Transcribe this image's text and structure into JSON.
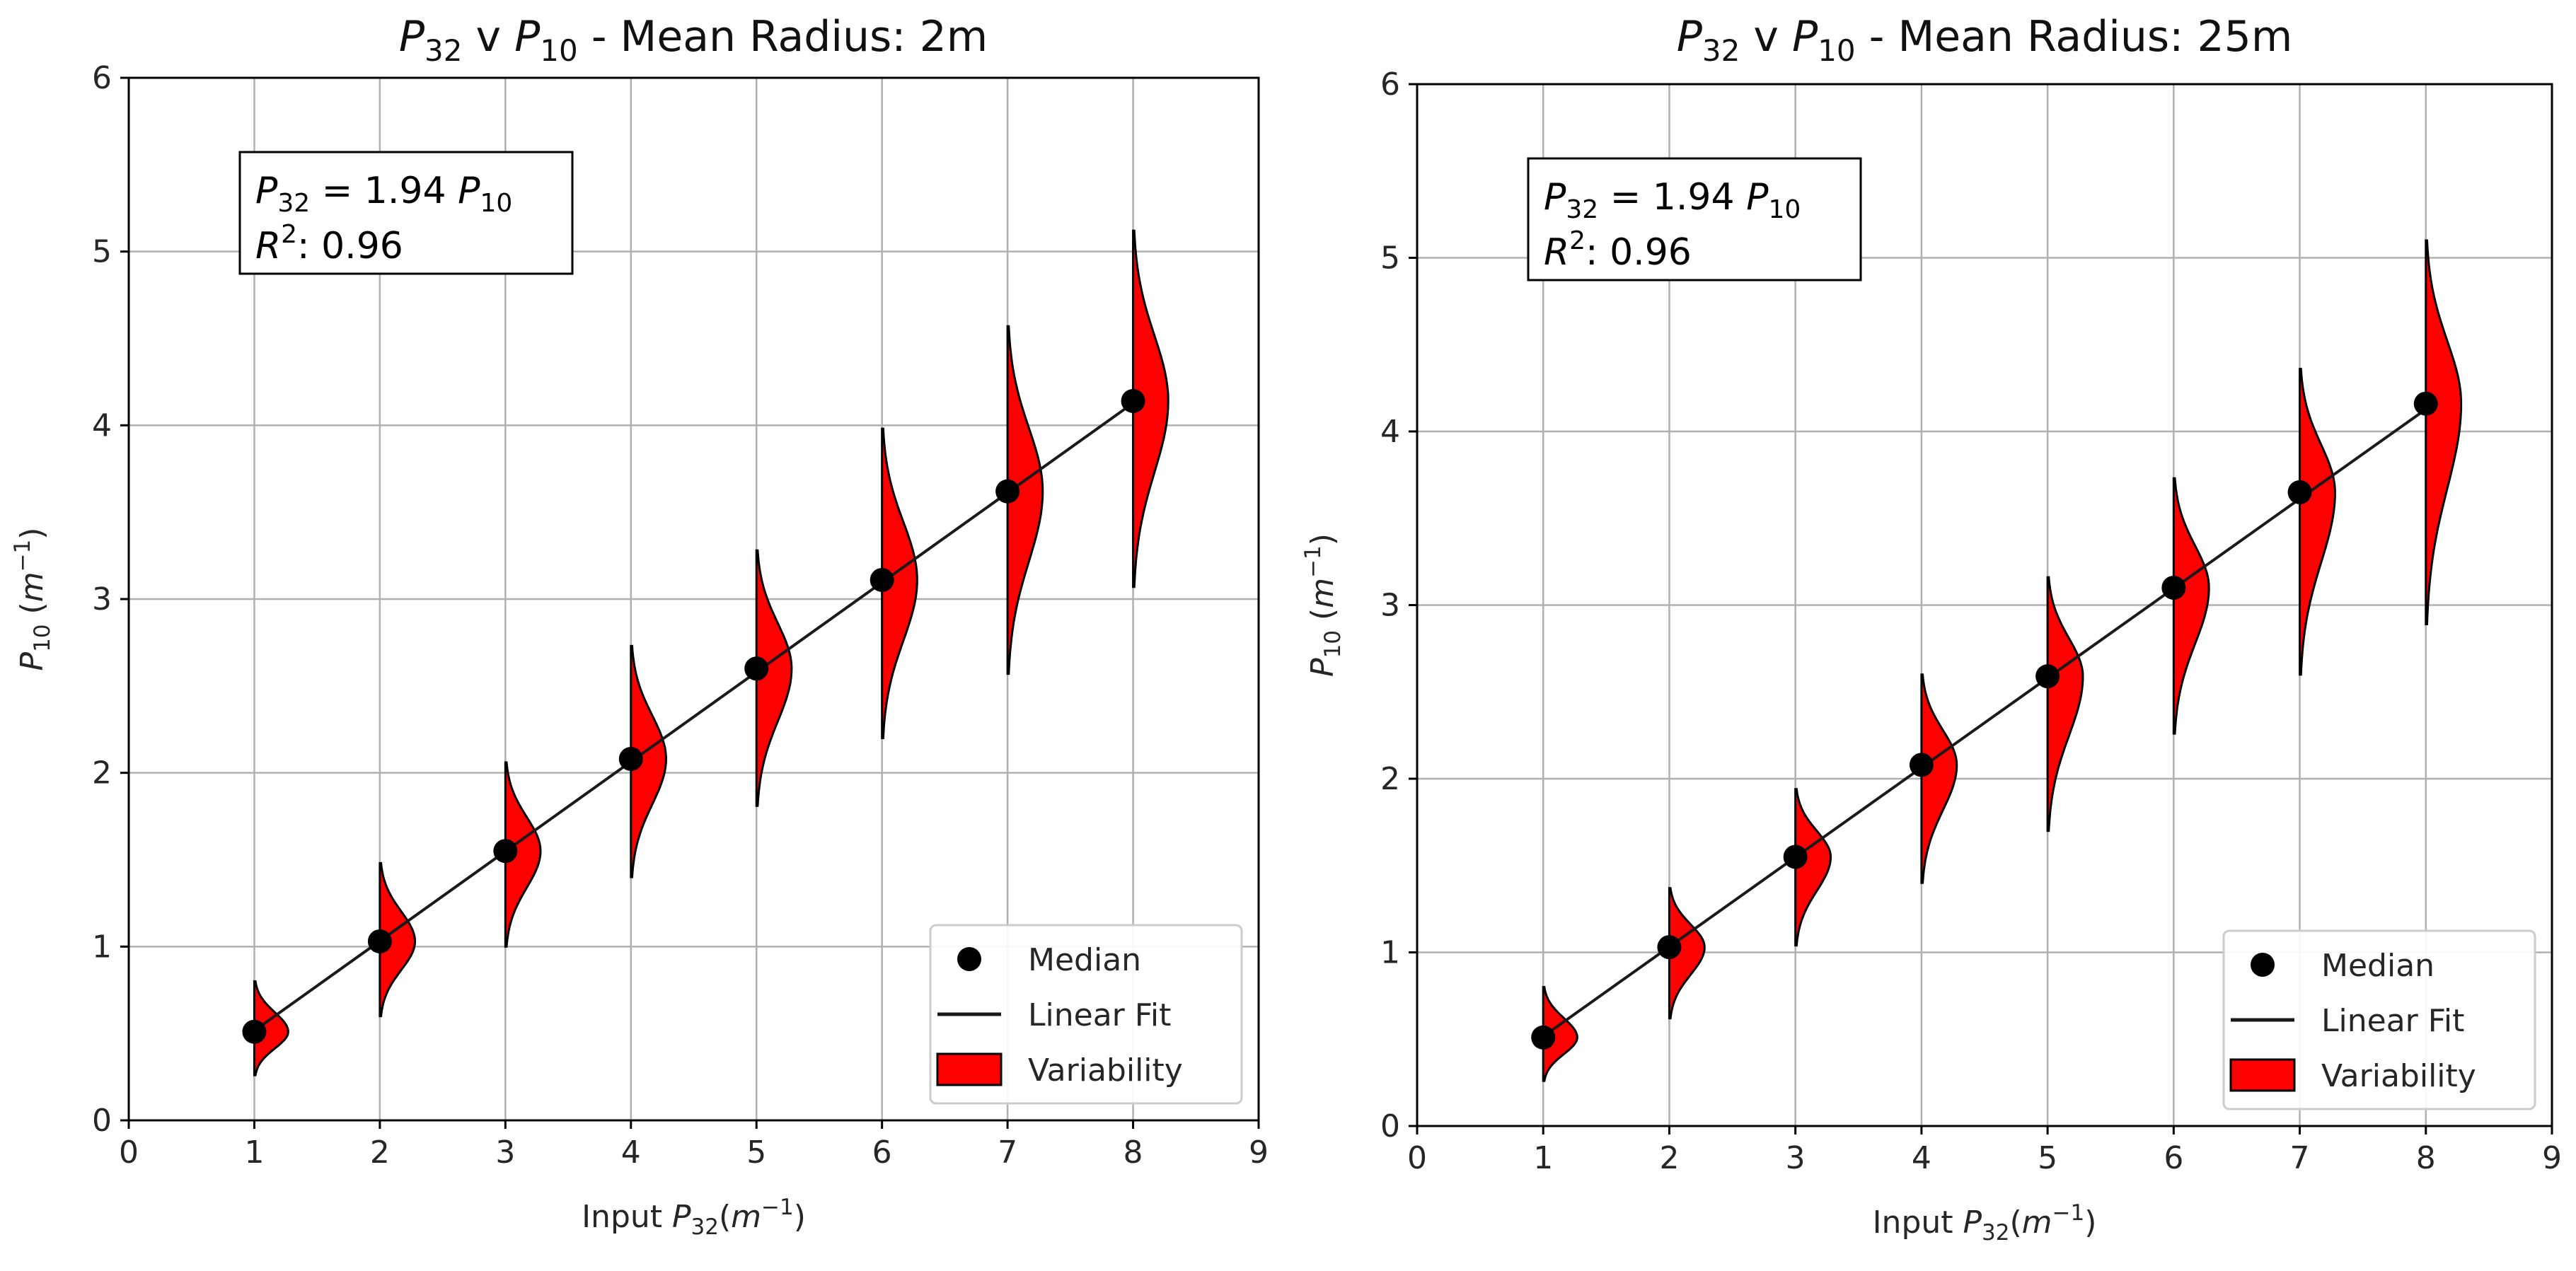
{
  "chart_data": [
    {
      "type": "violin",
      "title": {
        "part1": "P",
        "sub1": "32",
        "part2": " v ",
        "part3": "P",
        "sub3": "10",
        "part4": " - Mean Radius: 2m"
      },
      "xlabel": {
        "prefix": "Input ",
        "var": "P",
        "sub": "32",
        "unit_open": "(",
        "unit_var": "m",
        "unit_sup": "−1",
        "unit_close": ")"
      },
      "ylabel": {
        "var": "P",
        "sub": "10",
        "unit_open": " (",
        "unit_var": "m",
        "unit_sup": "−1",
        "unit_close": ")"
      },
      "xlim": [
        0,
        9
      ],
      "ylim": [
        0,
        6
      ],
      "xticks": [
        0,
        1,
        2,
        3,
        4,
        5,
        6,
        7,
        8,
        9
      ],
      "yticks": [
        0,
        1,
        2,
        3,
        4,
        5,
        6
      ],
      "grid": true,
      "annotation": {
        "line1": {
          "var": "P",
          "sub": "32",
          "mid": " = 1.94 ",
          "var2": "P",
          "sub2": "10"
        },
        "line2": {
          "var": "R",
          "sup": "2",
          "rest": ": 0.96"
        }
      },
      "legend": {
        "position": "bottom-right",
        "median": "Median",
        "fit": "Linear Fit",
        "variability": "Variability"
      },
      "fit": {
        "slope": 0.516,
        "intercept": 0.0,
        "x_range": [
          1,
          8
        ]
      },
      "series": [
        {
          "x": 1,
          "median": 0.51,
          "min": 0.26,
          "max": 0.8,
          "width": 0.27
        },
        {
          "x": 2,
          "median": 1.03,
          "min": 0.6,
          "max": 1.48,
          "width": 0.28
        },
        {
          "x": 3,
          "median": 1.55,
          "min": 1.0,
          "max": 2.06,
          "width": 0.28
        },
        {
          "x": 4,
          "median": 2.08,
          "min": 1.4,
          "max": 2.73,
          "width": 0.28
        },
        {
          "x": 5,
          "median": 2.6,
          "min": 1.81,
          "max": 3.28,
          "width": 0.28
        },
        {
          "x": 6,
          "median": 3.11,
          "min": 2.2,
          "max": 3.98,
          "width": 0.28
        },
        {
          "x": 7,
          "median": 3.62,
          "min": 2.57,
          "max": 4.57,
          "width": 0.28
        },
        {
          "x": 8,
          "median": 4.14,
          "min": 3.07,
          "max": 5.12,
          "width": 0.28
        }
      ]
    },
    {
      "type": "violin",
      "title": {
        "part1": "P",
        "sub1": "32",
        "part2": " v ",
        "part3": "P",
        "sub3": "10",
        "part4": " - Mean Radius: 25m"
      },
      "xlabel": {
        "prefix": "Input ",
        "var": "P",
        "sub": "32",
        "unit_open": "(",
        "unit_var": "m",
        "unit_sup": "−1",
        "unit_close": ")"
      },
      "ylabel": {
        "var": "P",
        "sub": "10",
        "unit_open": " (",
        "unit_var": "m",
        "unit_sup": "−1",
        "unit_close": ")"
      },
      "xlim": [
        0,
        9
      ],
      "ylim": [
        0,
        6
      ],
      "xticks": [
        0,
        1,
        2,
        3,
        4,
        5,
        6,
        7,
        8,
        9
      ],
      "yticks": [
        0,
        1,
        2,
        3,
        4,
        5,
        6
      ],
      "grid": true,
      "annotation": {
        "line1": {
          "var": "P",
          "sub": "32",
          "mid": " = 1.94 ",
          "var2": "P",
          "sub2": "10"
        },
        "line2": {
          "var": "R",
          "sup": "2",
          "rest": ": 0.96"
        }
      },
      "legend": {
        "position": "bottom-right",
        "median": "Median",
        "fit": "Linear Fit",
        "variability": "Variability"
      },
      "fit": {
        "slope": 0.516,
        "intercept": 0.0,
        "x_range": [
          1,
          8
        ]
      },
      "series": [
        {
          "x": 1,
          "median": 0.51,
          "min": 0.26,
          "max": 0.8,
          "width": 0.27
        },
        {
          "x": 2,
          "median": 1.03,
          "min": 0.62,
          "max": 1.37,
          "width": 0.28
        },
        {
          "x": 3,
          "median": 1.55,
          "min": 1.04,
          "max": 1.94,
          "width": 0.28
        },
        {
          "x": 4,
          "median": 2.08,
          "min": 1.4,
          "max": 2.6,
          "width": 0.28
        },
        {
          "x": 5,
          "median": 2.59,
          "min": 1.7,
          "max": 3.16,
          "width": 0.28
        },
        {
          "x": 6,
          "median": 3.1,
          "min": 2.26,
          "max": 3.73,
          "width": 0.28
        },
        {
          "x": 7,
          "median": 3.65,
          "min": 2.6,
          "max": 4.36,
          "width": 0.28
        },
        {
          "x": 8,
          "median": 4.16,
          "min": 2.89,
          "max": 5.1,
          "width": 0.28
        }
      ]
    }
  ],
  "colors": {
    "violin_fill": "#ff0000",
    "outline": "#000000",
    "grid": "#b0b0b0",
    "median": "#000000"
  }
}
